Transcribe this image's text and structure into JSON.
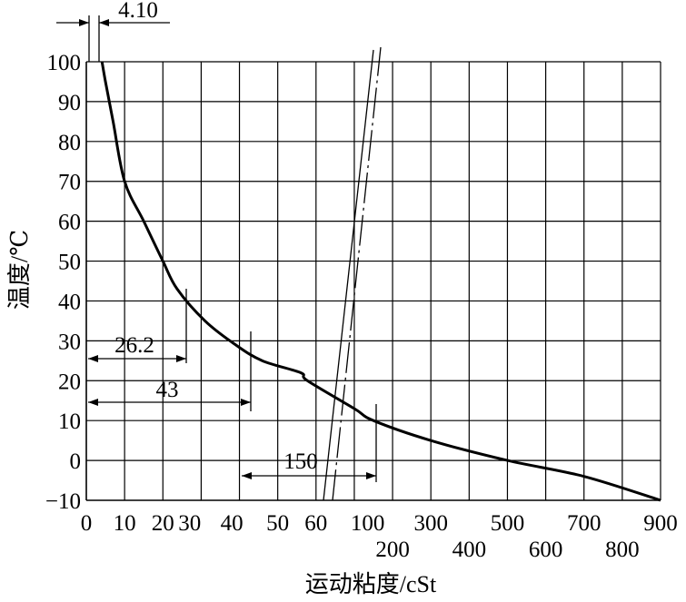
{
  "chart_data": {
    "type": "line",
    "ylabel": "温度/℃",
    "xlabel": "运动粘度/cSt",
    "ylim": [
      -10,
      100
    ],
    "grid": true,
    "y_ticks": [
      "100",
      "90",
      "80",
      "70",
      "60",
      "50",
      "40",
      "30",
      "20",
      "10",
      "0",
      "−10"
    ],
    "x_ticks_top": [
      "0",
      "10",
      "20",
      "30",
      "40",
      "50",
      "60",
      "100",
      "300",
      "500",
      "700",
      "900"
    ],
    "x_ticks_bottom": [
      "200",
      "400",
      "600",
      "800"
    ],
    "series": [
      {
        "points": [
          {
            "x": 4.1,
            "y": 100
          },
          {
            "x": 5,
            "y": 95
          },
          {
            "x": 7,
            "y": 85
          },
          {
            "x": 10,
            "y": 70
          },
          {
            "x": 15,
            "y": 60
          },
          {
            "x": 20,
            "y": 50
          },
          {
            "x": 26.2,
            "y": 43
          },
          {
            "x": 35,
            "y": 35
          },
          {
            "x": 43,
            "y": 29
          },
          {
            "x": 50,
            "y": 25
          },
          {
            "x": 60,
            "y": 22
          },
          {
            "x": 65,
            "y": 20
          },
          {
            "x": 100,
            "y": 13
          },
          {
            "x": 150,
            "y": 10
          },
          {
            "x": 300,
            "y": 5
          },
          {
            "x": 500,
            "y": 0
          },
          {
            "x": 700,
            "y": -4
          },
          {
            "x": 900,
            "y": -10
          }
        ]
      }
    ],
    "annotations": [
      {
        "text": "4.10",
        "x": 4.1,
        "y": 100
      },
      {
        "text": "26.2",
        "x": 26.2,
        "y": 25
      },
      {
        "text": "43",
        "x": 43,
        "y": 15
      },
      {
        "text": "150",
        "x": 150,
        "y": -5
      }
    ]
  }
}
